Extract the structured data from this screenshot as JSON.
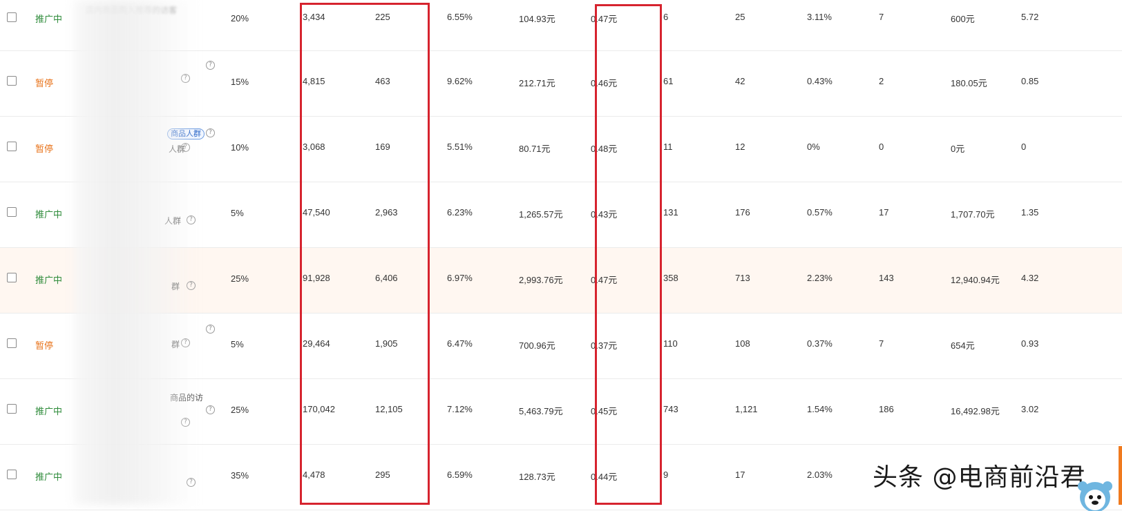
{
  "rows": [
    {
      "status": "推广中",
      "state": "on",
      "name": "店内商品购入推荐的访客",
      "tag": "",
      "label": "",
      "ratio": "20%",
      "c1": "3,434",
      "c2": "225",
      "c3": "6.55%",
      "c4": "104.93元",
      "c5": "0.47元",
      "c6": "6",
      "c7": "25",
      "c8": "3.11%",
      "c9": "7",
      "c10": "600元",
      "c11": "5.72"
    },
    {
      "status": "暂停",
      "state": "off",
      "name": "",
      "tag": "",
      "label": "",
      "ratio": "15%",
      "c1": "4,815",
      "c2": "463",
      "c3": "9.62%",
      "c4": "212.71元",
      "c5": "0.46元",
      "c6": "61",
      "c7": "42",
      "c8": "0.43%",
      "c9": "2",
      "c10": "180.05元",
      "c11": "0.85"
    },
    {
      "status": "暂停",
      "state": "off",
      "name": "",
      "tag": "商品人群",
      "label": "人群",
      "ratio": "10%",
      "c1": "3,068",
      "c2": "169",
      "c3": "5.51%",
      "c4": "80.71元",
      "c5": "0.48元",
      "c6": "11",
      "c7": "12",
      "c8": "0%",
      "c9": "0",
      "c10": "0元",
      "c11": "0"
    },
    {
      "status": "推广中",
      "state": "on",
      "name": "",
      "tag": "",
      "label": "人群",
      "ratio": "5%",
      "c1": "47,540",
      "c2": "2,963",
      "c3": "6.23%",
      "c4": "1,265.57元",
      "c5": "0.43元",
      "c6": "131",
      "c7": "176",
      "c8": "0.57%",
      "c9": "17",
      "c10": "1,707.70元",
      "c11": "1.35"
    },
    {
      "status": "推广中",
      "state": "on",
      "name": "",
      "tag": "",
      "label": "群",
      "ratio": "25%",
      "c1": "91,928",
      "c2": "6,406",
      "c3": "6.97%",
      "c4": "2,993.76元",
      "c5": "0.47元",
      "c6": "358",
      "c7": "713",
      "c8": "2.23%",
      "c9": "143",
      "c10": "12,940.94元",
      "c11": "4.32"
    },
    {
      "status": "暂停",
      "state": "off",
      "name": "",
      "tag": "",
      "label": "群",
      "ratio": "5%",
      "c1": "29,464",
      "c2": "1,905",
      "c3": "6.47%",
      "c4": "700.96元",
      "c5": "0.37元",
      "c6": "110",
      "c7": "108",
      "c8": "0.37%",
      "c9": "7",
      "c10": "654元",
      "c11": "0.93"
    },
    {
      "status": "推广中",
      "state": "on",
      "name": "",
      "tag": "",
      "label": "商品的访",
      "ratio": "25%",
      "c1": "170,042",
      "c2": "12,105",
      "c3": "7.12%",
      "c4": "5,463.79元",
      "c5": "0.45元",
      "c6": "743",
      "c7": "1,121",
      "c8": "1.54%",
      "c9": "186",
      "c10": "16,492.98元",
      "c11": "3.02"
    },
    {
      "status": "推广中",
      "state": "on",
      "name": "",
      "tag": "",
      "label": "",
      "ratio": "35%",
      "c1": "4,478",
      "c2": "295",
      "c3": "6.59%",
      "c4": "128.73元",
      "c5": "0.44元",
      "c6": "9",
      "c7": "17",
      "c8": "2.03%",
      "c9": "",
      "c10": "",
      "c11": ""
    }
  ],
  "watermark": "头条 @电商前沿君",
  "colors": {
    "active": "#2e8b3a",
    "paused": "#e8731a",
    "highlight": "#d6232e",
    "row_highlight": "#fff7f1"
  }
}
